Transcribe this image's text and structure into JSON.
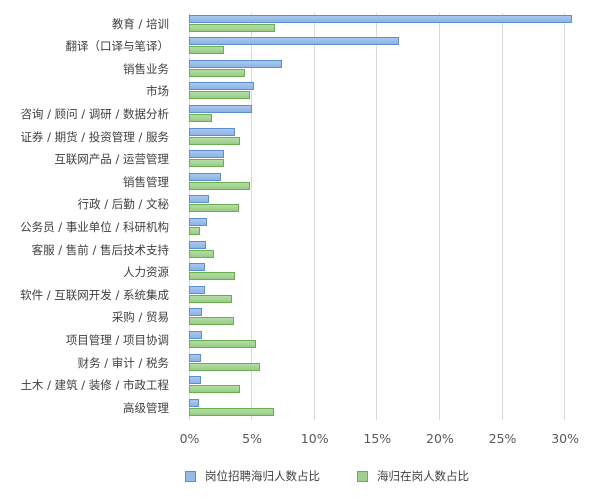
{
  "chart_data": {
    "type": "bar",
    "orientation": "horizontal",
    "title": "",
    "xlabel": "",
    "ylabel": "",
    "xlim": [
      0,
      30
    ],
    "x_ticks": [
      "0%",
      "5%",
      "10%",
      "15%",
      "20%",
      "25%",
      "30%"
    ],
    "grid": true,
    "legend_position": "bottom",
    "categories": [
      "教育 / 培训",
      "翻译（口译与笔译）",
      "销售业务",
      "市场",
      "咨询 / 顾问 / 调研 / 数据分析",
      "证券 / 期货 / 投资管理 / 服务",
      "互联网产品 / 运营管理",
      "销售管理",
      "行政 / 后勤 / 文秘",
      "公务员 / 事业单位 / 科研机构",
      "客服 / 售前 / 售后技术支持",
      "人力资源",
      "软件 / 互联网开发 / 系统集成",
      "采购 / 贸易",
      "项目管理 / 项目协调",
      "财务 / 审计 / 税务",
      "土木 / 建筑 / 装修 / 市政工程",
      "高级管理"
    ],
    "series": [
      {
        "name": "岗位招聘海归人数占比",
        "color": "#8db4e3",
        "values": [
          30.6,
          16.8,
          7.5,
          5.2,
          5.1,
          3.7,
          2.8,
          2.6,
          1.6,
          1.5,
          1.4,
          1.3,
          1.3,
          1.1,
          1.1,
          1.0,
          1.0,
          0.8
        ]
      },
      {
        "name": "海归在岗人数占比",
        "color": "#99cc87",
        "values": [
          6.9,
          2.8,
          4.5,
          4.9,
          1.9,
          4.1,
          2.8,
          4.9,
          4.0,
          0.9,
          2.0,
          3.7,
          3.5,
          3.6,
          5.4,
          5.7,
          4.1,
          6.8
        ]
      }
    ]
  },
  "legend": {
    "items": [
      {
        "label": "岗位招聘海归人数占比"
      },
      {
        "label": "海归在岗人数占比"
      }
    ]
  }
}
